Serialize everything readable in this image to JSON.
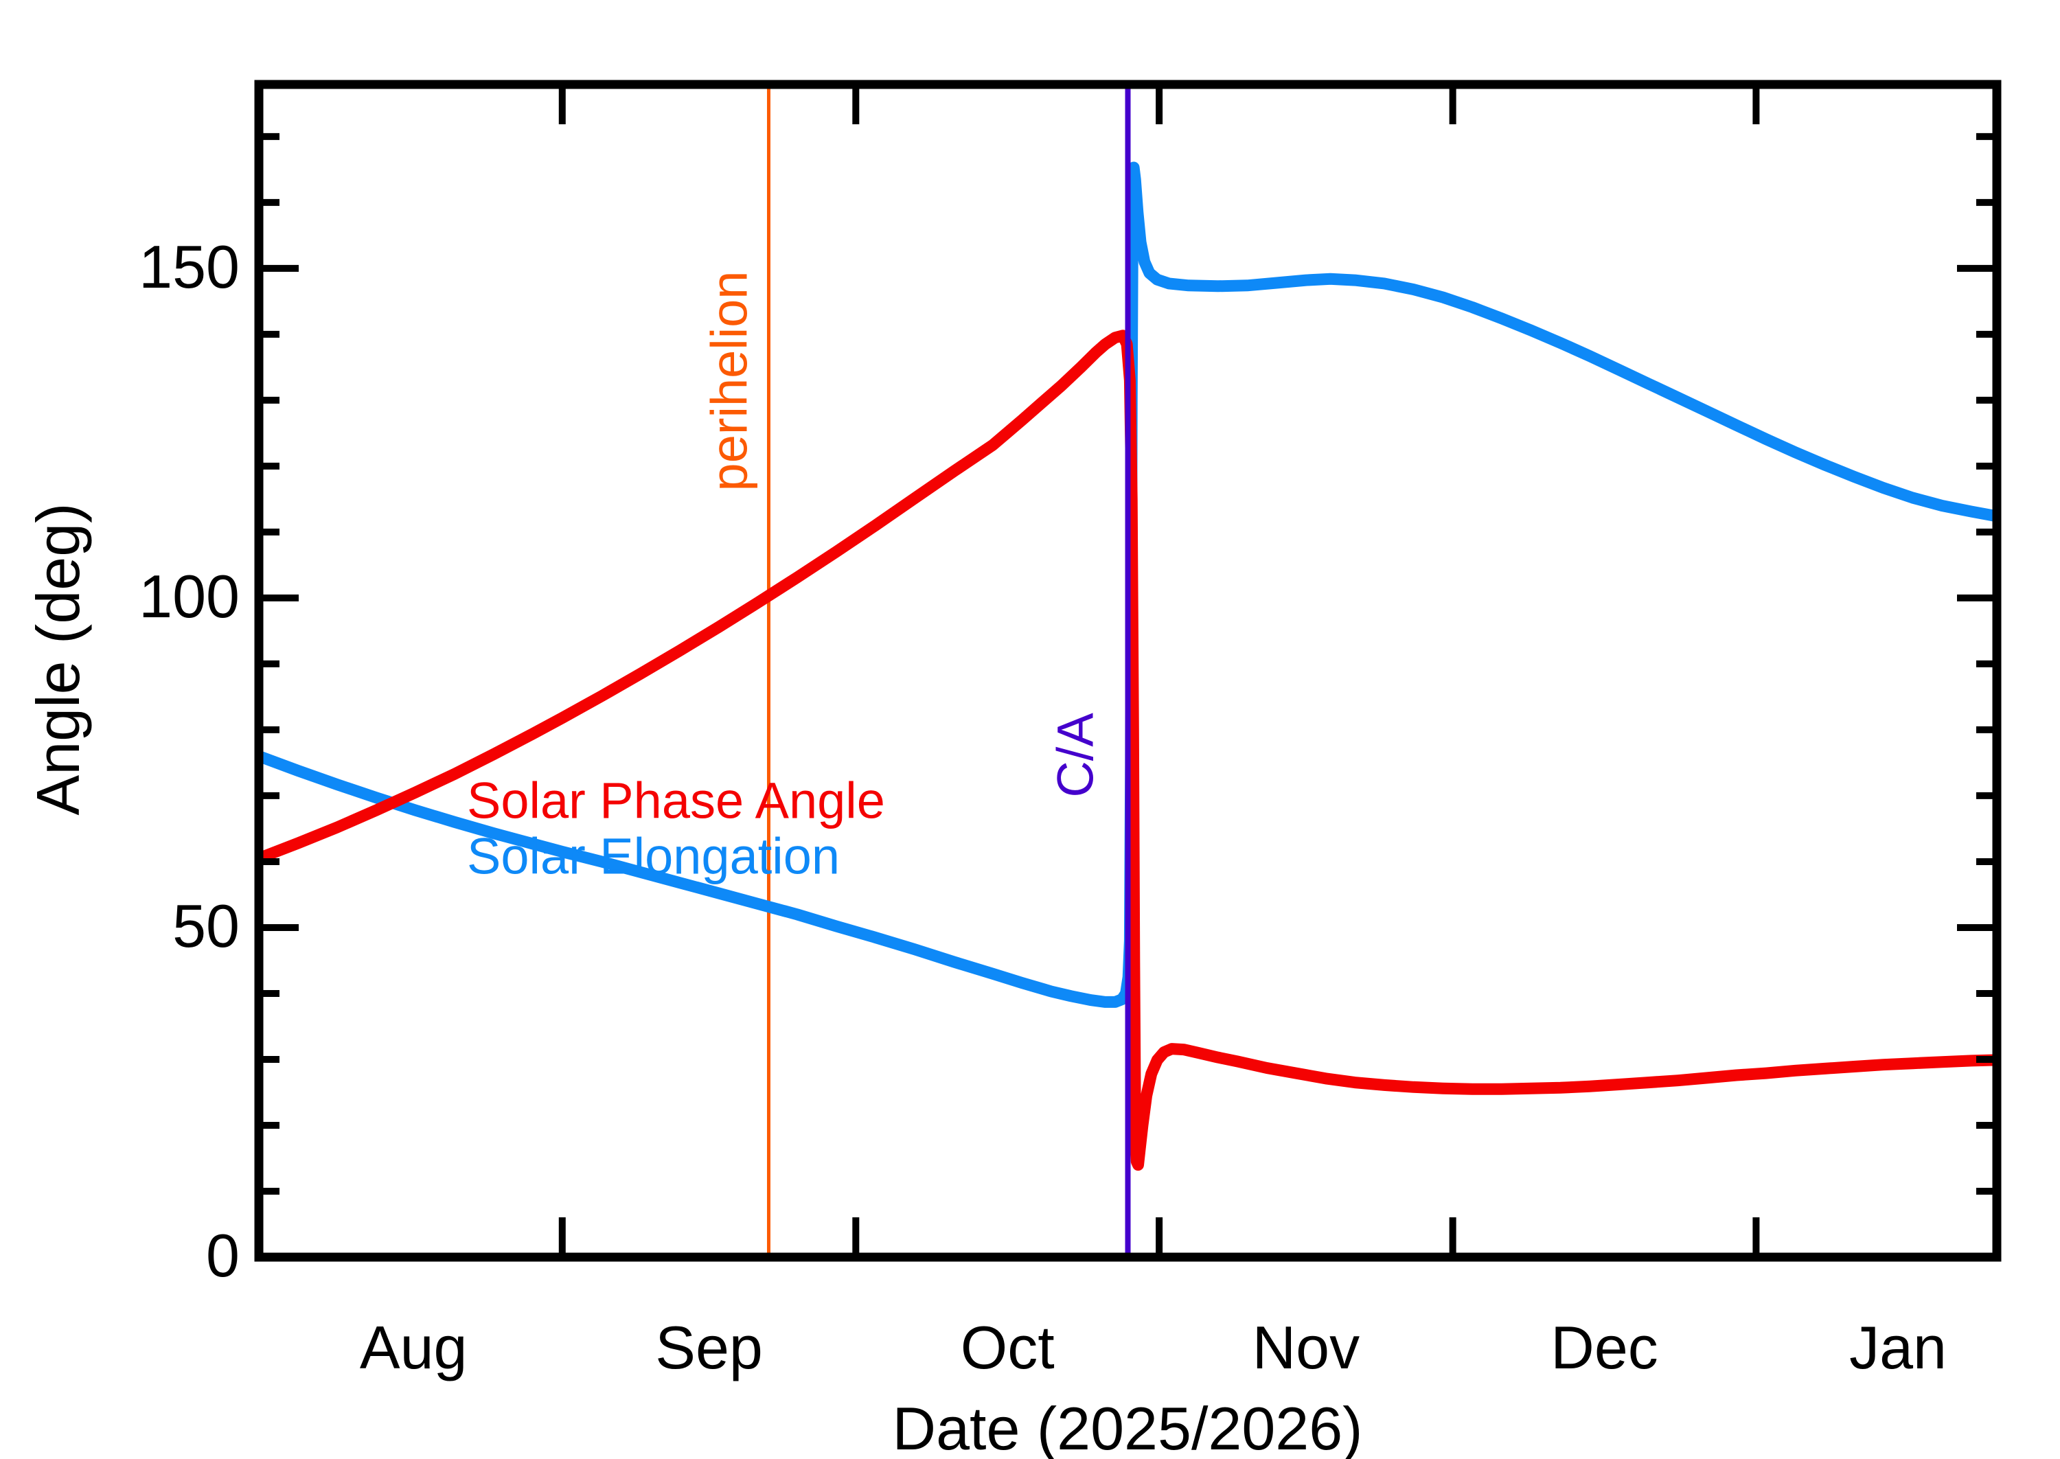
{
  "axes": {
    "xlabel": "Date (2025/2026)",
    "ylabel": "Angle (deg)",
    "y_tick_labels": [
      "0",
      "50",
      "100",
      "150"
    ],
    "y_tick_values": [
      0,
      50,
      100,
      150
    ],
    "month_labels": [
      "Aug",
      "Sep",
      "Oct",
      "Nov",
      "Dec",
      "Jan"
    ]
  },
  "legend": {
    "phase_label": "Solar Phase Angle",
    "elongation_label": "Solar Elongation"
  },
  "annotations": {
    "perihelion_label": "perihelion",
    "close_approach_label": "C/A"
  },
  "colors": {
    "phase": "#f40202",
    "elongation": "#0e89f7",
    "perihelion": "#fc5a03",
    "close_approach": "#4400cc",
    "axis": "#000000"
  },
  "chart_data": {
    "type": "line",
    "title": "",
    "xlabel": "Date (2025/2026)",
    "ylabel": "Angle (deg)",
    "x_unit": "days from Aug 1 (2025) through late Jan (2026)",
    "x_range_days": [
      0,
      177.6
    ],
    "ylim": [
      0,
      177.9
    ],
    "y_major_ticks": [
      0,
      50,
      100,
      150
    ],
    "y_minor_step": 10,
    "x_month_start_tick_days": [
      31,
      61,
      92,
      122,
      153
    ],
    "month_labels": [
      "Aug",
      "Sep",
      "Oct",
      "Nov",
      "Dec",
      "Jan"
    ],
    "month_label_days": [
      15.8,
      46,
      76.5,
      107,
      137.5,
      167.5
    ],
    "legend_position": "inside-left-middle",
    "grid": false,
    "vlines": [
      {
        "label": "perihelion",
        "day": 52.1,
        "color": "#fc5a03",
        "approx_date": "Sep 22"
      },
      {
        "label": "C/A",
        "day": 88.8,
        "color": "#4400cc",
        "approx_date": "Oct 29"
      }
    ],
    "series": [
      {
        "name": "Solar Elongation",
        "color": "#0e89f7",
        "points": [
          [
            0,
            76.0
          ],
          [
            4,
            73.8
          ],
          [
            8,
            71.7
          ],
          [
            12,
            69.7
          ],
          [
            16,
            67.8
          ],
          [
            20,
            66.0
          ],
          [
            24,
            64.3
          ],
          [
            28,
            62.7
          ],
          [
            31,
            61.5
          ],
          [
            35,
            60.0
          ],
          [
            39,
            58.4
          ],
          [
            43,
            56.8
          ],
          [
            47,
            55.2
          ],
          [
            51,
            53.6
          ],
          [
            55,
            52.0
          ],
          [
            59,
            50.2
          ],
          [
            63,
            48.5
          ],
          [
            67,
            46.7
          ],
          [
            71,
            44.8
          ],
          [
            75,
            43.0
          ],
          [
            78,
            41.6
          ],
          [
            81,
            40.3
          ],
          [
            83,
            39.6
          ],
          [
            85,
            39.0
          ],
          [
            86.5,
            38.7
          ],
          [
            87.5,
            38.7
          ],
          [
            88.2,
            39.1
          ],
          [
            88.6,
            40.0
          ],
          [
            88.85,
            42.5
          ],
          [
            89.0,
            48.0
          ],
          [
            89.1,
            75.0
          ],
          [
            89.2,
            130.0
          ],
          [
            89.3,
            160.0
          ],
          [
            89.4,
            165.3
          ],
          [
            89.55,
            163.5
          ],
          [
            89.8,
            158.5
          ],
          [
            90.1,
            154.0
          ],
          [
            90.5,
            151.0
          ],
          [
            91.0,
            149.3
          ],
          [
            91.8,
            148.3
          ],
          [
            93.0,
            147.7
          ],
          [
            95,
            147.4
          ],
          [
            98,
            147.3
          ],
          [
            101,
            147.4
          ],
          [
            104,
            147.8
          ],
          [
            107,
            148.2
          ],
          [
            109.5,
            148.4
          ],
          [
            112,
            148.2
          ],
          [
            115,
            147.7
          ],
          [
            118,
            146.8
          ],
          [
            121,
            145.6
          ],
          [
            124,
            144.1
          ],
          [
            127,
            142.4
          ],
          [
            130,
            140.6
          ],
          [
            133,
            138.7
          ],
          [
            136,
            136.7
          ],
          [
            139,
            134.6
          ],
          [
            142,
            132.5
          ],
          [
            145,
            130.4
          ],
          [
            148,
            128.3
          ],
          [
            151,
            126.2
          ],
          [
            154,
            124.1
          ],
          [
            157,
            122.1
          ],
          [
            160,
            120.2
          ],
          [
            163,
            118.4
          ],
          [
            166,
            116.7
          ],
          [
            169,
            115.2
          ],
          [
            172,
            114.0
          ],
          [
            175,
            113.1
          ],
          [
            177.6,
            112.4
          ]
        ]
      },
      {
        "name": "Solar Phase Angle",
        "color": "#f40202",
        "points": [
          [
            0,
            60.5
          ],
          [
            4,
            62.8
          ],
          [
            8,
            65.2
          ],
          [
            12,
            67.8
          ],
          [
            16,
            70.5
          ],
          [
            20,
            73.3
          ],
          [
            24,
            76.3
          ],
          [
            28,
            79.4
          ],
          [
            31,
            81.8
          ],
          [
            35,
            85.1
          ],
          [
            39,
            88.5
          ],
          [
            43,
            92.0
          ],
          [
            47,
            95.6
          ],
          [
            51,
            99.3
          ],
          [
            55,
            103.1
          ],
          [
            59,
            107.0
          ],
          [
            63,
            111.0
          ],
          [
            67,
            115.1
          ],
          [
            71,
            119.2
          ],
          [
            75,
            123.2
          ],
          [
            78,
            127.0
          ],
          [
            80,
            129.6
          ],
          [
            82,
            132.2
          ],
          [
            84,
            135.0
          ],
          [
            85.5,
            137.2
          ],
          [
            86.5,
            138.5
          ],
          [
            87.5,
            139.5
          ],
          [
            88.3,
            139.8
          ],
          [
            88.7,
            138.5
          ],
          [
            89.0,
            133.0
          ],
          [
            89.2,
            115.0
          ],
          [
            89.35,
            80.0
          ],
          [
            89.45,
            45.0
          ],
          [
            89.55,
            22.0
          ],
          [
            89.7,
            14.5
          ],
          [
            89.85,
            14.0
          ],
          [
            90.0,
            16.0
          ],
          [
            90.3,
            20.0
          ],
          [
            90.7,
            24.5
          ],
          [
            91.2,
            27.8
          ],
          [
            91.8,
            29.9
          ],
          [
            92.5,
            31.1
          ],
          [
            93.3,
            31.6
          ],
          [
            94.5,
            31.5
          ],
          [
            96,
            31.0
          ],
          [
            98,
            30.3
          ],
          [
            100,
            29.7
          ],
          [
            103,
            28.7
          ],
          [
            106,
            27.9
          ],
          [
            109,
            27.1
          ],
          [
            112,
            26.5
          ],
          [
            115,
            26.1
          ],
          [
            118,
            25.8
          ],
          [
            121,
            25.6
          ],
          [
            124,
            25.5
          ],
          [
            127,
            25.5
          ],
          [
            130,
            25.6
          ],
          [
            133,
            25.7
          ],
          [
            136,
            25.9
          ],
          [
            139,
            26.2
          ],
          [
            142,
            26.5
          ],
          [
            145,
            26.8
          ],
          [
            148,
            27.2
          ],
          [
            151,
            27.6
          ],
          [
            154,
            27.9
          ],
          [
            157,
            28.3
          ],
          [
            160,
            28.6
          ],
          [
            163,
            28.9
          ],
          [
            166,
            29.2
          ],
          [
            169,
            29.4
          ],
          [
            172,
            29.6
          ],
          [
            175,
            29.8
          ],
          [
            177.6,
            29.9
          ]
        ]
      }
    ]
  }
}
